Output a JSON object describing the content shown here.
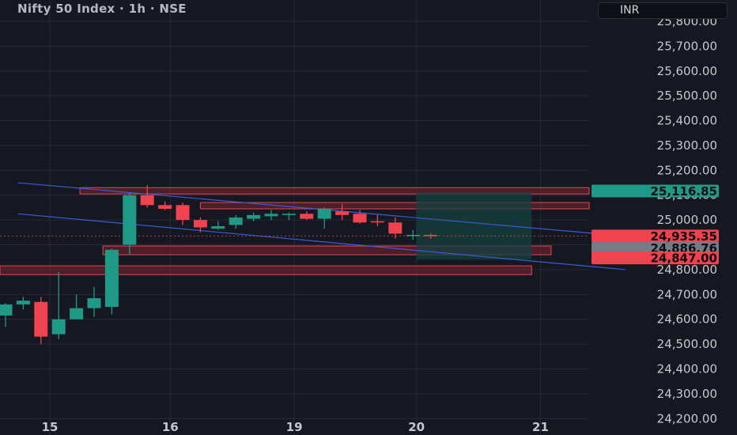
{
  "header": {
    "title": "Nifty 50 Index · 1h · NSE",
    "currency": "INR"
  },
  "colors": {
    "background": "#151821",
    "up": "#1f9a86",
    "down": "#f0424f",
    "grid": "#262a35",
    "trendline": "#3b5bd9",
    "zone_fill": "#7c2530",
    "zone_border": "#c7414e",
    "target_fill": "#14403f"
  },
  "chart_data": {
    "type": "candlestick",
    "ylim": [
      24150,
      25870
    ],
    "y_ticks": [
      24200,
      24300,
      24400,
      24500,
      24600,
      24700,
      24800,
      24900,
      25000,
      25100,
      25200,
      25300,
      25400,
      25500,
      25600,
      25700,
      25800
    ],
    "y_tick_labels": [
      "24,200.00",
      "24,300.00",
      "24,400.00",
      "24,500.00",
      "24,600.00",
      "24,700.00",
      "24,800.00",
      "24,900.00",
      "25,000.00",
      "25,100.00",
      "25,200.00",
      "25,300.00",
      "25,400.00",
      "25,500.00",
      "25,600.00",
      "25,700.00",
      "25,800.00"
    ],
    "x_ticks": [
      {
        "label": "15",
        "index": 2.5
      },
      {
        "label": "16",
        "index": 9.3
      },
      {
        "label": "19",
        "index": 16.3
      },
      {
        "label": "20",
        "index": 23.2
      },
      {
        "label": "21",
        "index": 30.2
      }
    ],
    "candles": [
      {
        "o": 24615,
        "h": 24665,
        "l": 24570,
        "c": 24660
      },
      {
        "o": 24660,
        "h": 24690,
        "l": 24640,
        "c": 24675
      },
      {
        "o": 24670,
        "h": 24690,
        "l": 24500,
        "c": 24530
      },
      {
        "o": 24540,
        "h": 24790,
        "l": 24520,
        "c": 24600
      },
      {
        "o": 24600,
        "h": 24700,
        "l": 24600,
        "c": 24645
      },
      {
        "o": 24645,
        "h": 24730,
        "l": 24610,
        "c": 24685
      },
      {
        "o": 24650,
        "h": 24885,
        "l": 24620,
        "c": 24880
      },
      {
        "o": 24900,
        "h": 25110,
        "l": 24860,
        "c": 25100
      },
      {
        "o": 25100,
        "h": 25140,
        "l": 25050,
        "c": 25060
      },
      {
        "o": 25060,
        "h": 25075,
        "l": 25040,
        "c": 25045
      },
      {
        "o": 25060,
        "h": 25070,
        "l": 24980,
        "c": 25000
      },
      {
        "o": 25000,
        "h": 25010,
        "l": 24950,
        "c": 24970
      },
      {
        "o": 24965,
        "h": 24995,
        "l": 24960,
        "c": 24975
      },
      {
        "o": 24980,
        "h": 25020,
        "l": 24965,
        "c": 25010
      },
      {
        "o": 25005,
        "h": 25030,
        "l": 24995,
        "c": 25020
      },
      {
        "o": 25015,
        "h": 25040,
        "l": 25000,
        "c": 25025
      },
      {
        "o": 25020,
        "h": 25030,
        "l": 25000,
        "c": 25025
      },
      {
        "o": 25025,
        "h": 25035,
        "l": 25000,
        "c": 25005
      },
      {
        "o": 25005,
        "h": 25050,
        "l": 24965,
        "c": 25045
      },
      {
        "o": 25035,
        "h": 25065,
        "l": 25000,
        "c": 25020
      },
      {
        "o": 25025,
        "h": 25040,
        "l": 24985,
        "c": 24990
      },
      {
        "o": 24995,
        "h": 25020,
        "l": 24975,
        "c": 24990
      },
      {
        "o": 24990,
        "h": 25010,
        "l": 24925,
        "c": 24945
      },
      {
        "o": 24935,
        "h": 24960,
        "l": 24920,
        "c": 24940
      },
      {
        "o": 24940,
        "h": 24945,
        "l": 24925,
        "c": 24935
      }
    ],
    "trendlines": [
      {
        "from": {
          "index": 0.7,
          "price": 25150
        },
        "to": {
          "index": 35.0,
          "price": 24935
        }
      },
      {
        "from": {
          "index": 0.7,
          "price": 25025
        },
        "to": {
          "index": 35.0,
          "price": 24800
        }
      }
    ],
    "zones": [
      {
        "name": "zone-top",
        "from": 4.2,
        "to": 35.0,
        "top": 25130,
        "bottom": 25105,
        "style": "red"
      },
      {
        "name": "zone-upper-right",
        "from": 11.0,
        "to": 33.7,
        "top": 25070,
        "bottom": 25045,
        "style": "red"
      },
      {
        "name": "zone-middle",
        "from": 5.5,
        "to": 30.8,
        "top": 24895,
        "bottom": 24860,
        "style": "red"
      },
      {
        "name": "zone-lower",
        "from": -2.0,
        "to": 29.7,
        "top": 24815,
        "bottom": 24780,
        "style": "red"
      },
      {
        "name": "target-box",
        "from": 23.2,
        "to": 29.7,
        "top": 25110,
        "bottom": 24840,
        "style": "teal"
      }
    ],
    "current_price": 24935.35,
    "price_labels": [
      {
        "value": 25116.85,
        "text": "25,116.85",
        "bg": "#1f9a86",
        "fg": "#0b0d12"
      },
      {
        "value": 24935.35,
        "text": "24,935.35",
        "bg": "#f0424f",
        "fg": "#0b0d12"
      },
      {
        "value": 24886.76,
        "text": "24,886.76",
        "bg": "#787b86",
        "fg": "#0b0d12"
      },
      {
        "value": 24847.0,
        "text": "24,847.00",
        "bg": "#f0424f",
        "fg": "#0b0d12"
      }
    ]
  }
}
